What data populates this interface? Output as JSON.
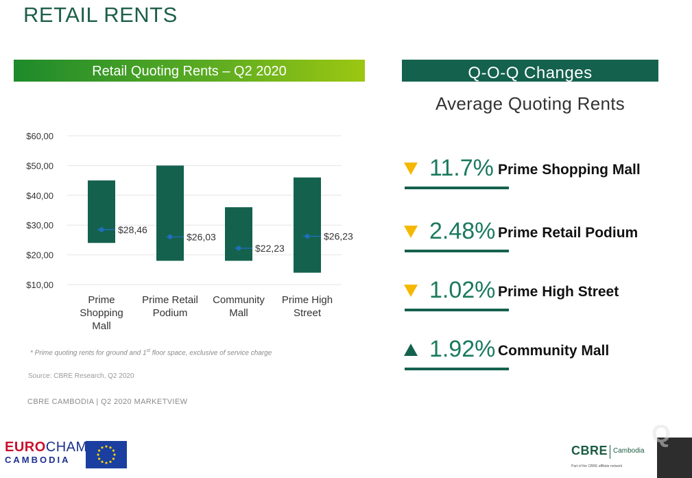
{
  "page_title": "RETAIL RENTS",
  "left_banner": "Retail Quoting Rents – Q2 2020",
  "right_banner": "Q-O-Q Changes",
  "right_subtitle": "Average Quoting Rents",
  "chart_data": {
    "type": "bar",
    "title": "Retail Quoting Rents – Q2 2020",
    "categories": [
      "Prime Shopping Mall",
      "Prime Retail Podium",
      "Community Mall",
      "Prime High Street"
    ],
    "category_lines": [
      [
        "Prime",
        "Shopping",
        "Mall"
      ],
      [
        "Prime Retail",
        "Podium"
      ],
      [
        "Community",
        "Mall"
      ],
      [
        "Prime High",
        "Street"
      ]
    ],
    "series": [
      {
        "name": "",
        "kind": "range",
        "low": [
          24,
          18,
          18,
          14
        ],
        "high": [
          45,
          50,
          36,
          46
        ]
      },
      {
        "name": "",
        "kind": "average",
        "values": [
          28.46,
          26.03,
          22.23,
          26.23
        ],
        "labels": [
          "$28,46",
          "$26,03",
          "$22,23",
          "$26,23"
        ]
      }
    ],
    "yticks": [
      10,
      20,
      30,
      40,
      50,
      60
    ],
    "ytick_labels": [
      "$10,00",
      "$20,00",
      "$30,00",
      "$40,00",
      "$50,00",
      "$60,00"
    ],
    "ylim": [
      10,
      60
    ],
    "grid": true,
    "bar_color": "#14614e",
    "marker_color": "#1f6fb8"
  },
  "qoq_changes": [
    {
      "direction": "down",
      "icon": "triangle-down-icon",
      "value": "11.7%",
      "label": "Prime Shopping Mall"
    },
    {
      "direction": "down",
      "icon": "triangle-down-icon",
      "value": "2.48%",
      "label": "Prime Retail Podium"
    },
    {
      "direction": "down",
      "icon": "triangle-down-icon",
      "value": "1.02%",
      "label": "Prime High Street"
    },
    {
      "direction": "up",
      "icon": "triangle-up-icon",
      "value": "1.92%",
      "label": "Community Mall"
    }
  ],
  "colors": {
    "down": "#f5b800",
    "up": "#14614e",
    "accent": "#14614e"
  },
  "footnote": {
    "pre": "* Prime quoting rents for ground and 1",
    "sup": "st",
    "post": " floor space, exclusive of service charge"
  },
  "source": "Source: CBRE Research, Q2 2020",
  "marketview": "CBRE CAMBODIA | Q2 2020 MARKETVIEW",
  "logos": {
    "eurocham_euro": "EURO",
    "eurocham_cham": "CHAM",
    "eurocham_bottom": "CAMBODIA",
    "cbre": "CBRE",
    "cbre_sub": "Cambodia",
    "cbre_tagline": "Part of the CBRE affiliate network"
  }
}
